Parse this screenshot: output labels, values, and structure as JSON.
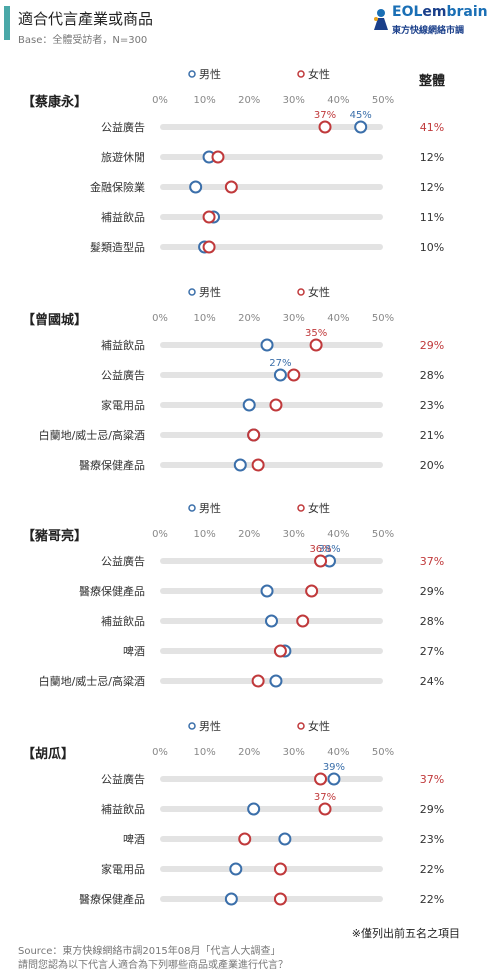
{
  "header": {
    "title": "適合代言產業或商品",
    "base": "Base：全體受訪者，N=300",
    "logo_main_a": "EOL",
    "logo_main_b": "em",
    "logo_main_c": "brain",
    "logo_sub": "東方快線網絡市調"
  },
  "colors": {
    "male": "#3b6faa",
    "female": "#c0393b",
    "highlight": "#c0393b",
    "track": "#e3e3e3"
  },
  "legend": {
    "male": "男性",
    "female": "女性",
    "overall_header": "整體"
  },
  "chart_data": [
    {
      "type": "dot",
      "title": "【蔡康永】",
      "ticks": [
        "0%",
        "10%",
        "20%",
        "30%",
        "40%",
        "50%"
      ],
      "xlim": [
        0,
        50
      ],
      "categories": [
        "公益廣告",
        "旅遊休閒",
        "金融保險業",
        "補益飲品",
        "髮類造型品"
      ],
      "series": [
        {
          "name": "男性",
          "values": [
            45,
            11,
            8,
            12,
            10
          ]
        },
        {
          "name": "女性",
          "values": [
            37,
            13,
            16,
            11,
            11
          ]
        }
      ],
      "overall": [
        "41%",
        "12%",
        "12%",
        "11%",
        "10%"
      ],
      "highlight_index": 0,
      "data_labels": [
        {
          "category_index": 0,
          "series": "男性",
          "text": "45%"
        },
        {
          "category_index": 0,
          "series": "女性",
          "text": "37%"
        }
      ]
    },
    {
      "type": "dot",
      "title": "【曾國城】",
      "ticks": [
        "0%",
        "10%",
        "20%",
        "30%",
        "40%",
        "50%"
      ],
      "xlim": [
        0,
        50
      ],
      "categories": [
        "補益飲品",
        "公益廣告",
        "家電用品",
        "白蘭地/威士忌/高粱酒",
        "醫療保健產品"
      ],
      "series": [
        {
          "name": "男性",
          "values": [
            24,
            27,
            20,
            21,
            18
          ]
        },
        {
          "name": "女性",
          "values": [
            35,
            30,
            26,
            21,
            22
          ]
        }
      ],
      "overall": [
        "29%",
        "28%",
        "23%",
        "21%",
        "20%"
      ],
      "highlight_index": 0,
      "data_labels": [
        {
          "category_index": 0,
          "series": "女性",
          "text": "35%"
        },
        {
          "category_index": 1,
          "series": "男性",
          "text": "27%"
        }
      ]
    },
    {
      "type": "dot",
      "title": "【豬哥亮】",
      "ticks": [
        "0%",
        "10%",
        "20%",
        "30%",
        "40%",
        "50%"
      ],
      "xlim": [
        0,
        50
      ],
      "categories": [
        "公益廣告",
        "醫療保健產品",
        "補益飲品",
        "啤酒",
        "白蘭地/威士忌/高粱酒"
      ],
      "series": [
        {
          "name": "男性",
          "values": [
            38,
            24,
            25,
            28,
            26
          ]
        },
        {
          "name": "女性",
          "values": [
            36,
            34,
            32,
            27,
            22
          ]
        }
      ],
      "overall": [
        "37%",
        "29%",
        "28%",
        "27%",
        "24%"
      ],
      "highlight_index": 0,
      "data_labels": [
        {
          "category_index": 0,
          "series": "女性",
          "text": "36%"
        },
        {
          "category_index": 0,
          "series": "男性",
          "text": "38%"
        }
      ]
    },
    {
      "type": "dot",
      "title": "【胡瓜】",
      "ticks": [
        "0%",
        "10%",
        "20%",
        "30%",
        "40%",
        "50%"
      ],
      "xlim": [
        0,
        50
      ],
      "categories": [
        "公益廣告",
        "補益飲品",
        "啤酒",
        "家電用品",
        "醫療保健產品"
      ],
      "series": [
        {
          "name": "男性",
          "values": [
            39,
            21,
            28,
            17,
            16
          ]
        },
        {
          "name": "女性",
          "values": [
            36,
            37,
            19,
            27,
            27
          ]
        }
      ],
      "overall": [
        "37%",
        "29%",
        "23%",
        "22%",
        "22%"
      ],
      "highlight_index": 0,
      "data_labels": [
        {
          "category_index": 0,
          "series": "男性",
          "text": "39%"
        },
        {
          "category_index": 1,
          "series": "女性",
          "text": "37%"
        }
      ]
    }
  ],
  "footer": {
    "note": "※僅列出前五名之項目",
    "source_line1": "Source：東方快線網絡市調2015年08月「代言人大調查」",
    "source_line2": "請問您認為以下代言人適合為下列哪些商品或產業進行代言？"
  }
}
